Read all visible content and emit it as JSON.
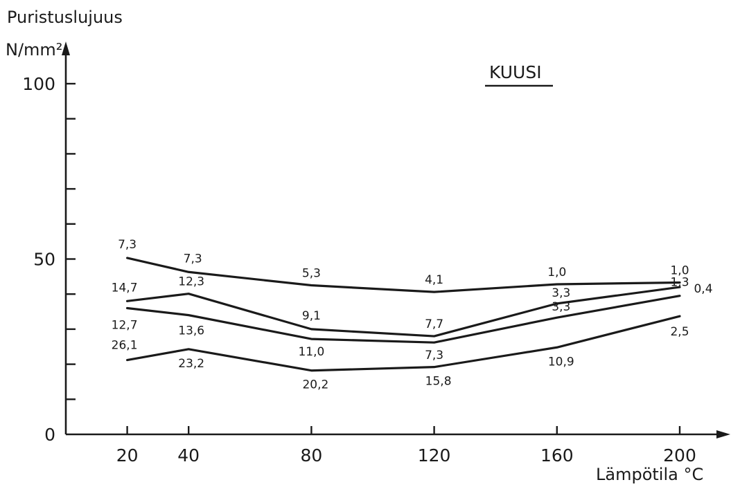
{
  "chart_data": {
    "type": "line",
    "title": "KUUSI",
    "ylabel": "Puristuslujuus",
    "yunit": "N/mm²",
    "xlabel": "Lämpötila °C",
    "x": [
      20,
      40,
      80,
      120,
      160,
      200
    ],
    "x_tick_labels": [
      "20",
      "40",
      "80",
      "120",
      "160",
      "200"
    ],
    "y_tick_labels": [
      "0",
      "50",
      "100"
    ],
    "y_ticks": [
      0,
      10,
      20,
      30,
      40,
      50,
      60,
      70,
      80,
      90,
      100
    ],
    "xlim": [
      0,
      215
    ],
    "ylim": [
      0,
      105
    ],
    "grid": false,
    "series": [
      {
        "values": [
          50.3,
          46.3,
          42.5,
          40.6,
          42.8,
          43.3
        ],
        "labels": [
          "7,3",
          "7,3",
          "5,3",
          "4,1",
          "1,0",
          "1,0"
        ]
      },
      {
        "values": [
          38.0,
          40.1,
          30.0,
          28.0,
          37.3,
          42.0
        ],
        "labels": [
          "14,7",
          "12,3",
          "9,1",
          "7,7",
          "3,3",
          "0,4"
        ]
      },
      {
        "values": [
          36.0,
          34.0,
          27.2,
          26.2,
          33.3,
          39.5
        ],
        "labels": [
          "12,7",
          "13,6",
          "11,0",
          "7,3",
          "3,3",
          "1,3"
        ]
      },
      {
        "values": [
          21.2,
          24.3,
          18.2,
          19.2,
          24.8,
          33.7
        ],
        "labels": [
          "26,1",
          "23,2",
          "20,2",
          "15,8",
          "10,9",
          "2,5"
        ]
      }
    ]
  }
}
